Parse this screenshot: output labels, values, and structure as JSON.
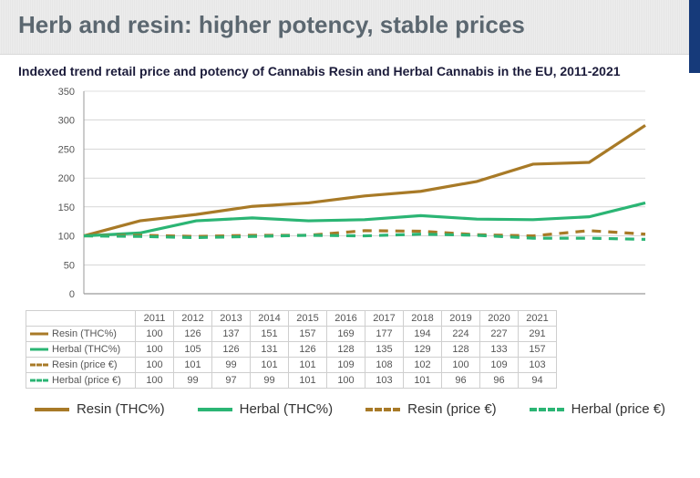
{
  "title": "Herb and resin: higher potency, stable prices",
  "subtitle": "Indexed trend retail price and potency of Cannabis Resin and Herbal Cannabis in the EU, 2011-2021",
  "chart": {
    "type": "line",
    "years": [
      "2011",
      "2012",
      "2013",
      "2014",
      "2015",
      "2016",
      "2017",
      "2018",
      "2019",
      "2020",
      "2021"
    ],
    "ylim": [
      0,
      350
    ],
    "ytick_step": 50,
    "grid_color": "#bfbfbf",
    "axis_color": "#9a9a9a",
    "background": "#ffffff",
    "label_fontsize": 11,
    "series": [
      {
        "key": "resin_thc",
        "label": "Resin (THC%)",
        "color": "#a87a27",
        "dashed": false,
        "values": [
          100,
          126,
          137,
          151,
          157,
          169,
          177,
          194,
          224,
          227,
          291
        ]
      },
      {
        "key": "herbal_thc",
        "label": "Herbal (THC%)",
        "color": "#2bb574",
        "dashed": false,
        "values": [
          100,
          105,
          126,
          131,
          126,
          128,
          135,
          129,
          128,
          133,
          157
        ]
      },
      {
        "key": "resin_price",
        "label": "Resin (price €)",
        "color": "#a87a27",
        "dashed": true,
        "values": [
          100,
          101,
          99,
          101,
          101,
          109,
          108,
          102,
          100,
          109,
          103
        ]
      },
      {
        "key": "herbal_price",
        "label": "Herbal (price €)",
        "color": "#2bb574",
        "dashed": true,
        "values": [
          100,
          99,
          97,
          99,
          101,
          100,
          103,
          101,
          96,
          96,
          94
        ]
      }
    ],
    "line_width": 3.2,
    "dash_pattern": "10 8"
  },
  "legend_labels": {
    "resin_thc": "Resin (THC%)",
    "herbal_thc": "Herbal (THC%)",
    "resin_price": "Resin (price €)",
    "herbal_price": "Herbal (price €)"
  },
  "accent_color": "#163a7a"
}
